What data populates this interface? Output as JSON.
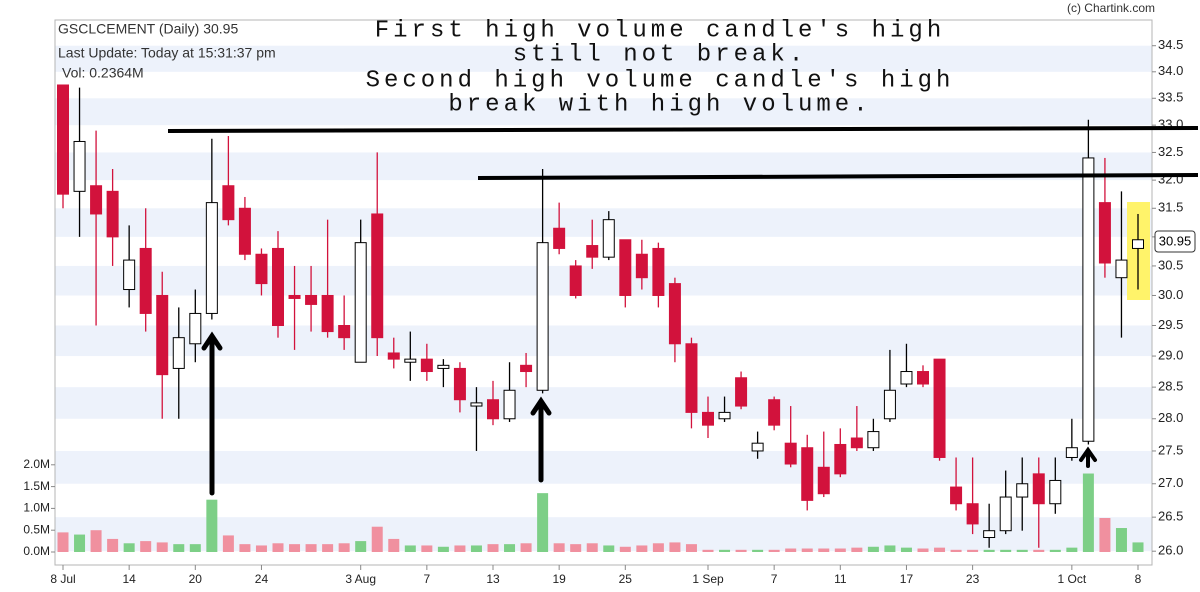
{
  "chart_data": {
    "type": "candlestick",
    "title": "GSCLCEMENT (Daily) 30.95",
    "subtitle": "Last Update: Today at 15:31:37 pm",
    "volume_label": "Vol: 0.2364M",
    "credit": "(c) Chartink.com",
    "annotations": [
      "First high volume candle's high",
      "still not break.",
      "Second high volume candle's high",
      "break with high volume."
    ],
    "categories": [
      "8 Jul",
      null,
      null,
      null,
      "14",
      null,
      null,
      null,
      "20",
      null,
      null,
      null,
      "24",
      null,
      null,
      null,
      null,
      null,
      "3 Aug",
      null,
      null,
      null,
      "7",
      null,
      null,
      null,
      "13",
      null,
      null,
      null,
      "19",
      null,
      null,
      null,
      "25",
      null,
      null,
      null,
      null,
      "1 Sep",
      null,
      null,
      null,
      "7",
      null,
      null,
      null,
      "11",
      null,
      null,
      null,
      "17",
      null,
      null,
      null,
      "23",
      null,
      null,
      null,
      null,
      null,
      "1 Oct",
      null,
      null,
      null,
      "8"
    ],
    "open": [
      33.75,
      31.8,
      31.9,
      31.8,
      30.1,
      30.8,
      30.0,
      28.8,
      29.2,
      29.7,
      31.9,
      31.5,
      30.7,
      30.8,
      30.0,
      30.0,
      30.0,
      29.5,
      28.9,
      31.4,
      29.05,
      28.9,
      28.95,
      28.8,
      28.8,
      28.2,
      28.3,
      28.0,
      28.85,
      28.45,
      31.15,
      30.5,
      30.85,
      30.65,
      30.95,
      30.7,
      30.8,
      30.2,
      29.2,
      28.1,
      28.0,
      28.65,
      27.5,
      28.3,
      27.62,
      27.55,
      27.25,
      27.6,
      27.7,
      27.55,
      28.0,
      28.55,
      28.75,
      28.95,
      26.95,
      26.7,
      26.2,
      26.3,
      26.8,
      27.15,
      26.7,
      27.4,
      27.65,
      31.6,
      30.3,
      30.8
    ],
    "high": [
      33.75,
      33.7,
      32.9,
      32.2,
      31.2,
      31.5,
      30.4,
      29.8,
      30.1,
      32.75,
      32.8,
      31.7,
      30.8,
      31.1,
      30.5,
      30.5,
      31.3,
      30.0,
      31.3,
      32.5,
      29.3,
      29.4,
      29.2,
      28.95,
      28.9,
      28.5,
      28.6,
      28.9,
      29.05,
      32.2,
      31.6,
      30.6,
      31.3,
      31.45,
      30.95,
      30.95,
      30.9,
      30.3,
      29.3,
      28.35,
      28.35,
      28.75,
      27.8,
      28.35,
      28.2,
      27.75,
      27.8,
      27.85,
      28.2,
      28.0,
      29.1,
      29.2,
      28.85,
      28.95,
      27.4,
      27.4,
      26.7,
      27.2,
      27.4,
      27.4,
      27.4,
      28.0,
      33.1,
      32.4,
      31.8,
      31.4
    ],
    "low": [
      31.5,
      31.0,
      29.5,
      30.5,
      29.8,
      29.4,
      28.0,
      28.0,
      28.9,
      29.6,
      31.2,
      30.6,
      30.0,
      29.3,
      29.1,
      29.4,
      29.3,
      29.1,
      28.9,
      29.0,
      28.8,
      28.6,
      28.6,
      28.5,
      28.1,
      27.5,
      27.9,
      27.95,
      28.5,
      28.4,
      30.7,
      29.95,
      30.45,
      30.6,
      29.8,
      30.1,
      29.8,
      28.9,
      27.85,
      27.7,
      27.95,
      28.15,
      27.38,
      27.82,
      27.25,
      26.6,
      26.8,
      27.1,
      27.5,
      27.5,
      27.95,
      28.5,
      28.5,
      27.35,
      26.6,
      26.25,
      26.05,
      26.25,
      26.3,
      26.05,
      26.55,
      27.35,
      27.6,
      30.3,
      29.3,
      30.1
    ],
    "close": [
      31.75,
      32.7,
      31.4,
      31.0,
      30.6,
      29.7,
      28.7,
      29.3,
      29.7,
      31.6,
      31.3,
      30.7,
      30.2,
      29.5,
      29.95,
      29.85,
      29.4,
      29.3,
      30.9,
      29.3,
      28.95,
      28.95,
      28.75,
      28.85,
      28.3,
      28.25,
      28.0,
      28.45,
      28.75,
      30.9,
      30.8,
      30.0,
      30.65,
      31.3,
      30.0,
      30.3,
      30.0,
      29.2,
      28.1,
      27.9,
      28.1,
      28.2,
      27.62,
      27.9,
      27.3,
      26.75,
      26.85,
      27.15,
      27.55,
      27.8,
      28.45,
      28.75,
      28.55,
      27.4,
      26.7,
      26.4,
      26.3,
      26.8,
      27.0,
      26.7,
      27.05,
      27.55,
      32.4,
      30.55,
      30.6,
      30.95
    ],
    "volume": [
      0.45,
      0.4,
      0.5,
      0.3,
      0.2,
      0.25,
      0.22,
      0.18,
      0.18,
      1.2,
      0.38,
      0.18,
      0.15,
      0.2,
      0.18,
      0.18,
      0.18,
      0.2,
      0.25,
      0.58,
      0.3,
      0.15,
      0.15,
      0.12,
      0.15,
      0.15,
      0.18,
      0.18,
      0.2,
      1.35,
      0.2,
      0.18,
      0.2,
      0.15,
      0.12,
      0.15,
      0.2,
      0.22,
      0.18,
      0.05,
      0.05,
      0.05,
      0.05,
      0.05,
      0.08,
      0.08,
      0.08,
      0.08,
      0.1,
      0.12,
      0.15,
      0.1,
      0.08,
      0.1,
      0.05,
      0.05,
      0.05,
      0.05,
      0.05,
      0.05,
      0.05,
      0.1,
      1.8,
      0.78,
      0.55,
      0.22
    ],
    "log_scale": true,
    "ylim": [
      25.8,
      35.0
    ],
    "yticks": [
      {
        "value": 26,
        "label": "26.0"
      },
      26.5,
      {
        "value": 27,
        "label": "27.0"
      },
      27.5,
      {
        "value": 28,
        "label": "28.0"
      },
      28.5,
      {
        "value": 29,
        "label": "29.0"
      },
      29.5,
      {
        "value": 30,
        "label": "30.0"
      },
      30.5,
      {
        "value": 31,
        "label": "31.0"
      },
      31.5,
      {
        "value": 32,
        "label": "32.0"
      },
      32.5,
      {
        "value": 33,
        "label": "33.0"
      },
      33.5,
      {
        "value": 34,
        "label": "34.0"
      },
      34.5
    ],
    "y2lim": [
      0,
      2.5
    ],
    "y2ticks": [
      {
        "value": 0,
        "label": "0.0M"
      },
      {
        "value": 0.5,
        "label": "0.5M"
      },
      {
        "value": 1,
        "label": "1.0M"
      },
      {
        "value": 1.5,
        "label": "1.5M"
      },
      {
        "value": 2,
        "label": "2.0M"
      }
    ],
    "grid": true,
    "grid_color": "#edf2fb",
    "up_color": "#ffffff",
    "down_color": "#d2123c",
    "volume_up_color": "#7dcf87",
    "volume_down_color": "#f0909f"
  }
}
